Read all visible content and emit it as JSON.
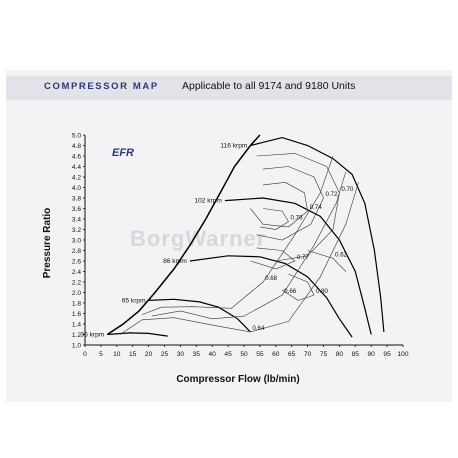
{
  "header": {
    "title": "COMPRESSOR MAP",
    "subtitle": "Applicable to all 9174 and 9180 Units"
  },
  "logo_text": "EFR",
  "watermark_text": "BorgWarner",
  "chart_data": {
    "type": "line",
    "title": "",
    "xlabel": "Compressor Flow (lb/min)",
    "ylabel": "Pressure Ratio",
    "xlim": [
      0,
      100
    ],
    "ylim": [
      1.0,
      5.0
    ],
    "x_ticks": [
      "0",
      "5",
      "10",
      "15",
      "20",
      "25",
      "30",
      "35",
      "40",
      "45",
      "50",
      "55",
      "60",
      "65",
      "70",
      "75",
      "80",
      "85",
      "90",
      "95",
      "100"
    ],
    "y_ticks": [
      "1.0",
      "1.2",
      "1.4",
      "1.6",
      "1.8",
      "2.0",
      "2.2",
      "2.4",
      "2.6",
      "2.8",
      "3.0",
      "3.2",
      "3.4",
      "3.6",
      "3.8",
      "4.0",
      "4.2",
      "4.4",
      "4.6",
      "4.8",
      "5.0"
    ],
    "grid": false,
    "surge_line": [
      [
        7,
        1.2
      ],
      [
        12,
        1.4
      ],
      [
        17,
        1.65
      ],
      [
        22,
        2.0
      ],
      [
        28,
        2.45
      ],
      [
        33,
        2.9
      ],
      [
        38,
        3.4
      ],
      [
        43,
        3.95
      ],
      [
        47,
        4.4
      ],
      [
        52,
        4.8
      ],
      [
        55,
        5.0
      ]
    ],
    "speed_lines": [
      {
        "label": "35 krpm",
        "points": [
          [
            7,
            1.2
          ],
          [
            14,
            1.23
          ],
          [
            20,
            1.22
          ],
          [
            26,
            1.17
          ]
        ]
      },
      {
        "label": "65 krpm",
        "points": [
          [
            20,
            1.85
          ],
          [
            28,
            1.87
          ],
          [
            36,
            1.82
          ],
          [
            42,
            1.72
          ],
          [
            48,
            1.5
          ],
          [
            52,
            1.25
          ]
        ]
      },
      {
        "label": "86 krpm",
        "points": [
          [
            33,
            2.6
          ],
          [
            45,
            2.7
          ],
          [
            55,
            2.68
          ],
          [
            63,
            2.55
          ],
          [
            70,
            2.3
          ],
          [
            76,
            1.9
          ],
          [
            80,
            1.5
          ],
          [
            84,
            1.15
          ]
        ]
      },
      {
        "label": "102 krpm",
        "points": [
          [
            44,
            3.75
          ],
          [
            56,
            3.8
          ],
          [
            66,
            3.7
          ],
          [
            74,
            3.45
          ],
          [
            80,
            3.0
          ],
          [
            85,
            2.4
          ],
          [
            88,
            1.7
          ],
          [
            90,
            1.2
          ]
        ]
      },
      {
        "label": "116 krpm",
        "points": [
          [
            52,
            4.8
          ],
          [
            62,
            4.95
          ],
          [
            70,
            4.8
          ],
          [
            78,
            4.55
          ],
          [
            84,
            4.25
          ],
          [
            88,
            3.7
          ],
          [
            91,
            2.8
          ],
          [
            93,
            1.9
          ],
          [
            94,
            1.25
          ]
        ]
      }
    ],
    "efficiency_contours": [
      {
        "label": "0.64",
        "points": [
          [
            11,
            1.2
          ],
          [
            18,
            1.48
          ],
          [
            28,
            1.52
          ],
          [
            40,
            1.38
          ],
          [
            52,
            1.25
          ],
          [
            64,
            1.45
          ],
          [
            74,
            2.3
          ],
          [
            82,
            3.3
          ],
          [
            86,
            4.1
          ]
        ]
      },
      {
        "label": "0.66",
        "points": [
          [
            21,
            1.55
          ],
          [
            30,
            1.65
          ],
          [
            40,
            1.5
          ],
          [
            50,
            1.55
          ],
          [
            62,
            1.95
          ],
          [
            72,
            2.9
          ],
          [
            79,
            3.7
          ],
          [
            82,
            4.3
          ]
        ]
      },
      {
        "label": "0.68",
        "points": [
          [
            18,
            1.58
          ],
          [
            24,
            1.72
          ],
          [
            34,
            1.73
          ],
          [
            46,
            1.7
          ],
          [
            56,
            2.2
          ],
          [
            66,
            3.1
          ],
          [
            74,
            3.9
          ],
          [
            78,
            4.6
          ]
        ]
      },
      {
        "label": "0.70",
        "points": [
          [
            54,
            4.6
          ],
          [
            66,
            4.65
          ],
          [
            76,
            4.4
          ],
          [
            80,
            3.9
          ],
          [
            78,
            3.2
          ],
          [
            70,
            2.7
          ],
          [
            60,
            2.6
          ]
        ]
      },
      {
        "label": "0.72",
        "points": [
          [
            56,
            4.35
          ],
          [
            64,
            4.4
          ],
          [
            72,
            4.2
          ],
          [
            75,
            3.8
          ],
          [
            71,
            3.3
          ],
          [
            62,
            3.0
          ],
          [
            54,
            3.1
          ]
        ]
      },
      {
        "label": "0.74",
        "points": [
          [
            56,
            4.05
          ],
          [
            63,
            4.1
          ],
          [
            69,
            3.9
          ],
          [
            70,
            3.55
          ],
          [
            64,
            3.25
          ],
          [
            56,
            3.3
          ],
          [
            52,
            3.6
          ]
        ]
      },
      {
        "label": "0.76",
        "points": [
          [
            56,
            3.6
          ],
          [
            62,
            3.55
          ],
          [
            64,
            3.35
          ],
          [
            60,
            3.2
          ],
          [
            55,
            3.25
          ]
        ]
      },
      {
        "label": "0.77",
        "points": [
          [
            54,
            2.85
          ],
          [
            62,
            2.8
          ],
          [
            66,
            2.6
          ],
          [
            60,
            2.45
          ],
          [
            52,
            2.6
          ]
        ]
      },
      {
        "label": "0.80",
        "points": [
          [
            64,
            2.35
          ],
          [
            70,
            2.2
          ],
          [
            72,
            1.95
          ],
          [
            67,
            1.85
          ],
          [
            62,
            2.05
          ]
        ]
      },
      {
        "label": "0.62",
        "points": [
          [
            70,
            2.8
          ],
          [
            78,
            2.65
          ],
          [
            82,
            2.4
          ]
        ]
      }
    ]
  }
}
